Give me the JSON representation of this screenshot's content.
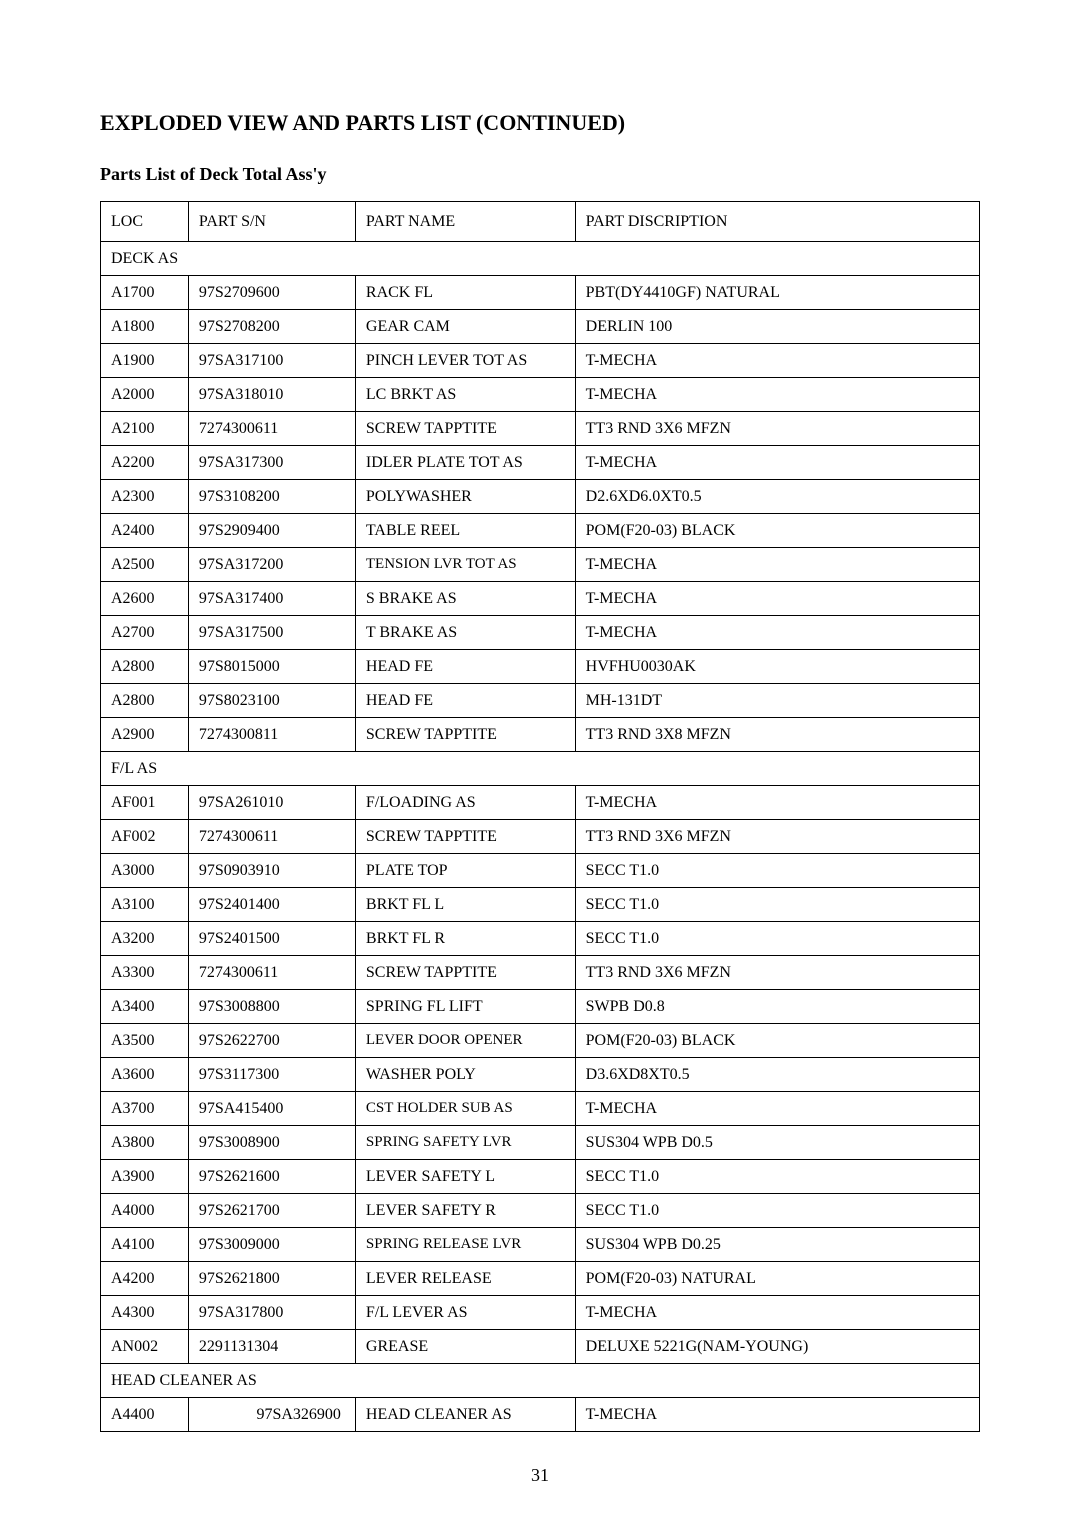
{
  "page": {
    "title": "EXPLODED VIEW AND PARTS LIST (CONTINUED)",
    "subtitle": "Parts List  of  Deck Total Ass'y",
    "number": "31"
  },
  "table": {
    "headers": {
      "loc": "LOC",
      "sn": "PART S/N",
      "name": "PART NAME",
      "desc": "PART DISCRIPTION"
    },
    "sections": [
      {
        "label": "DECK AS",
        "rows": [
          {
            "loc": "A1700",
            "sn": "97S2709600",
            "name": "RACK FL",
            "desc": "PBT(DY4410GF) NATURAL"
          },
          {
            "loc": "A1800",
            "sn": "97S2708200",
            "name": "GEAR CAM",
            "desc": "DERLIN 100"
          },
          {
            "loc": "A1900",
            "sn": "97SA317100",
            "name": "PINCH LEVER TOT AS",
            "desc": "T-MECHA"
          },
          {
            "loc": "A2000",
            "sn": "97SA318010",
            "name": "LC BRKT AS",
            "desc": "T-MECHA"
          },
          {
            "loc": "A2100",
            "sn": "7274300611",
            "name": "SCREW TAPPTITE",
            "desc": "TT3 RND 3X6 MFZN"
          },
          {
            "loc": "A2200",
            "sn": "97SA317300",
            "name": "IDLER PLATE TOT AS",
            "desc": "T-MECHA"
          },
          {
            "loc": "A2300",
            "sn": "97S3108200",
            "name": "POLYWASHER",
            "desc": "D2.6XD6.0XT0.5"
          },
          {
            "loc": "A2400",
            "sn": "97S2909400",
            "name": "TABLE REEL",
            "desc": "POM(F20-03) BLACK"
          },
          {
            "loc": "A2500",
            "sn": "97SA317200",
            "name": "TENSION LVR TOT AS",
            "desc": "T-MECHA",
            "nameSmall": true
          },
          {
            "loc": "A2600",
            "sn": "97SA317400",
            "name": "S BRAKE AS",
            "desc": "T-MECHA"
          },
          {
            "loc": "A2700",
            "sn": "97SA317500",
            "name": "T BRAKE AS",
            "desc": "T-MECHA"
          },
          {
            "loc": "A2800",
            "sn": "97S8015000",
            "name": "HEAD FE",
            "desc": "HVFHU0030AK"
          },
          {
            "loc": "A2800",
            "sn": "97S8023100",
            "name": "HEAD FE",
            "desc": "MH-131DT"
          },
          {
            "loc": "A2900",
            "sn": "7274300811",
            "name": "SCREW TAPPTITE",
            "desc": "TT3 RND 3X8 MFZN"
          }
        ]
      },
      {
        "label": "F/L AS",
        "rows": [
          {
            "loc": "AF001",
            "sn": "97SA261010",
            "name": "F/LOADING AS",
            "desc": "T-MECHA"
          },
          {
            "loc": "AF002",
            "sn": "7274300611",
            "name": "SCREW TAPPTITE",
            "desc": "TT3 RND 3X6 MFZN"
          },
          {
            "loc": "A3000",
            "sn": "97S0903910",
            "name": "PLATE TOP",
            "desc": "SECC T1.0"
          },
          {
            "loc": "A3100",
            "sn": "97S2401400",
            "name": "BRKT FL L",
            "desc": "SECC T1.0"
          },
          {
            "loc": "A3200",
            "sn": "97S2401500",
            "name": "BRKT FL R",
            "desc": "SECC T1.0"
          },
          {
            "loc": "A3300",
            "sn": "7274300611",
            "name": "SCREW TAPPTITE",
            "desc": "TT3 RND 3X6 MFZN"
          },
          {
            "loc": "A3400",
            "sn": "97S3008800",
            "name": "SPRING FL LIFT",
            "desc": "SWPB D0.8"
          },
          {
            "loc": "A3500",
            "sn": "97S2622700",
            "name": "LEVER DOOR OPENER",
            "desc": "POM(F20-03) BLACK",
            "nameSmall": true
          },
          {
            "loc": "A3600",
            "sn": "97S3117300",
            "name": "WASHER POLY",
            "desc": "D3.6XD8XT0.5"
          },
          {
            "loc": "A3700",
            "sn": "97SA415400",
            "name": "CST HOLDER SUB AS",
            "desc": "T-MECHA",
            "nameSmall": true
          },
          {
            "loc": "A3800",
            "sn": "97S3008900",
            "name": "SPRING SAFETY LVR",
            "desc": "SUS304 WPB D0.5",
            "nameSmall": true
          },
          {
            "loc": "A3900",
            "sn": "97S2621600",
            "name": "LEVER SAFETY L",
            "desc": "SECC T1.0"
          },
          {
            "loc": "A4000",
            "sn": "97S2621700",
            "name": "LEVER SAFETY R",
            "desc": "SECC T1.0"
          },
          {
            "loc": "A4100",
            "sn": "97S3009000",
            "name": "SPRING RELEASE LVR",
            "desc": "SUS304 WPB D0.25",
            "nameSmall": true
          },
          {
            "loc": "A4200",
            "sn": "97S2621800",
            "name": "LEVER RELEASE",
            "desc": "POM(F20-03) NATURAL"
          },
          {
            "loc": "A4300",
            "sn": "97SA317800",
            "name": "F/L LEVER AS",
            "desc": "T-MECHA"
          },
          {
            "loc": "AN002",
            "sn": "2291131304",
            "name": "GREASE",
            "desc": "DELUXE 5221G(NAM-YOUNG)"
          }
        ]
      },
      {
        "label": "HEAD CLEANER AS",
        "rows": [
          {
            "loc": "A4400",
            "sn": "97SA326900",
            "name": "HEAD CLEANER AS",
            "desc": "T-MECHA",
            "snRight": true
          }
        ]
      }
    ]
  }
}
